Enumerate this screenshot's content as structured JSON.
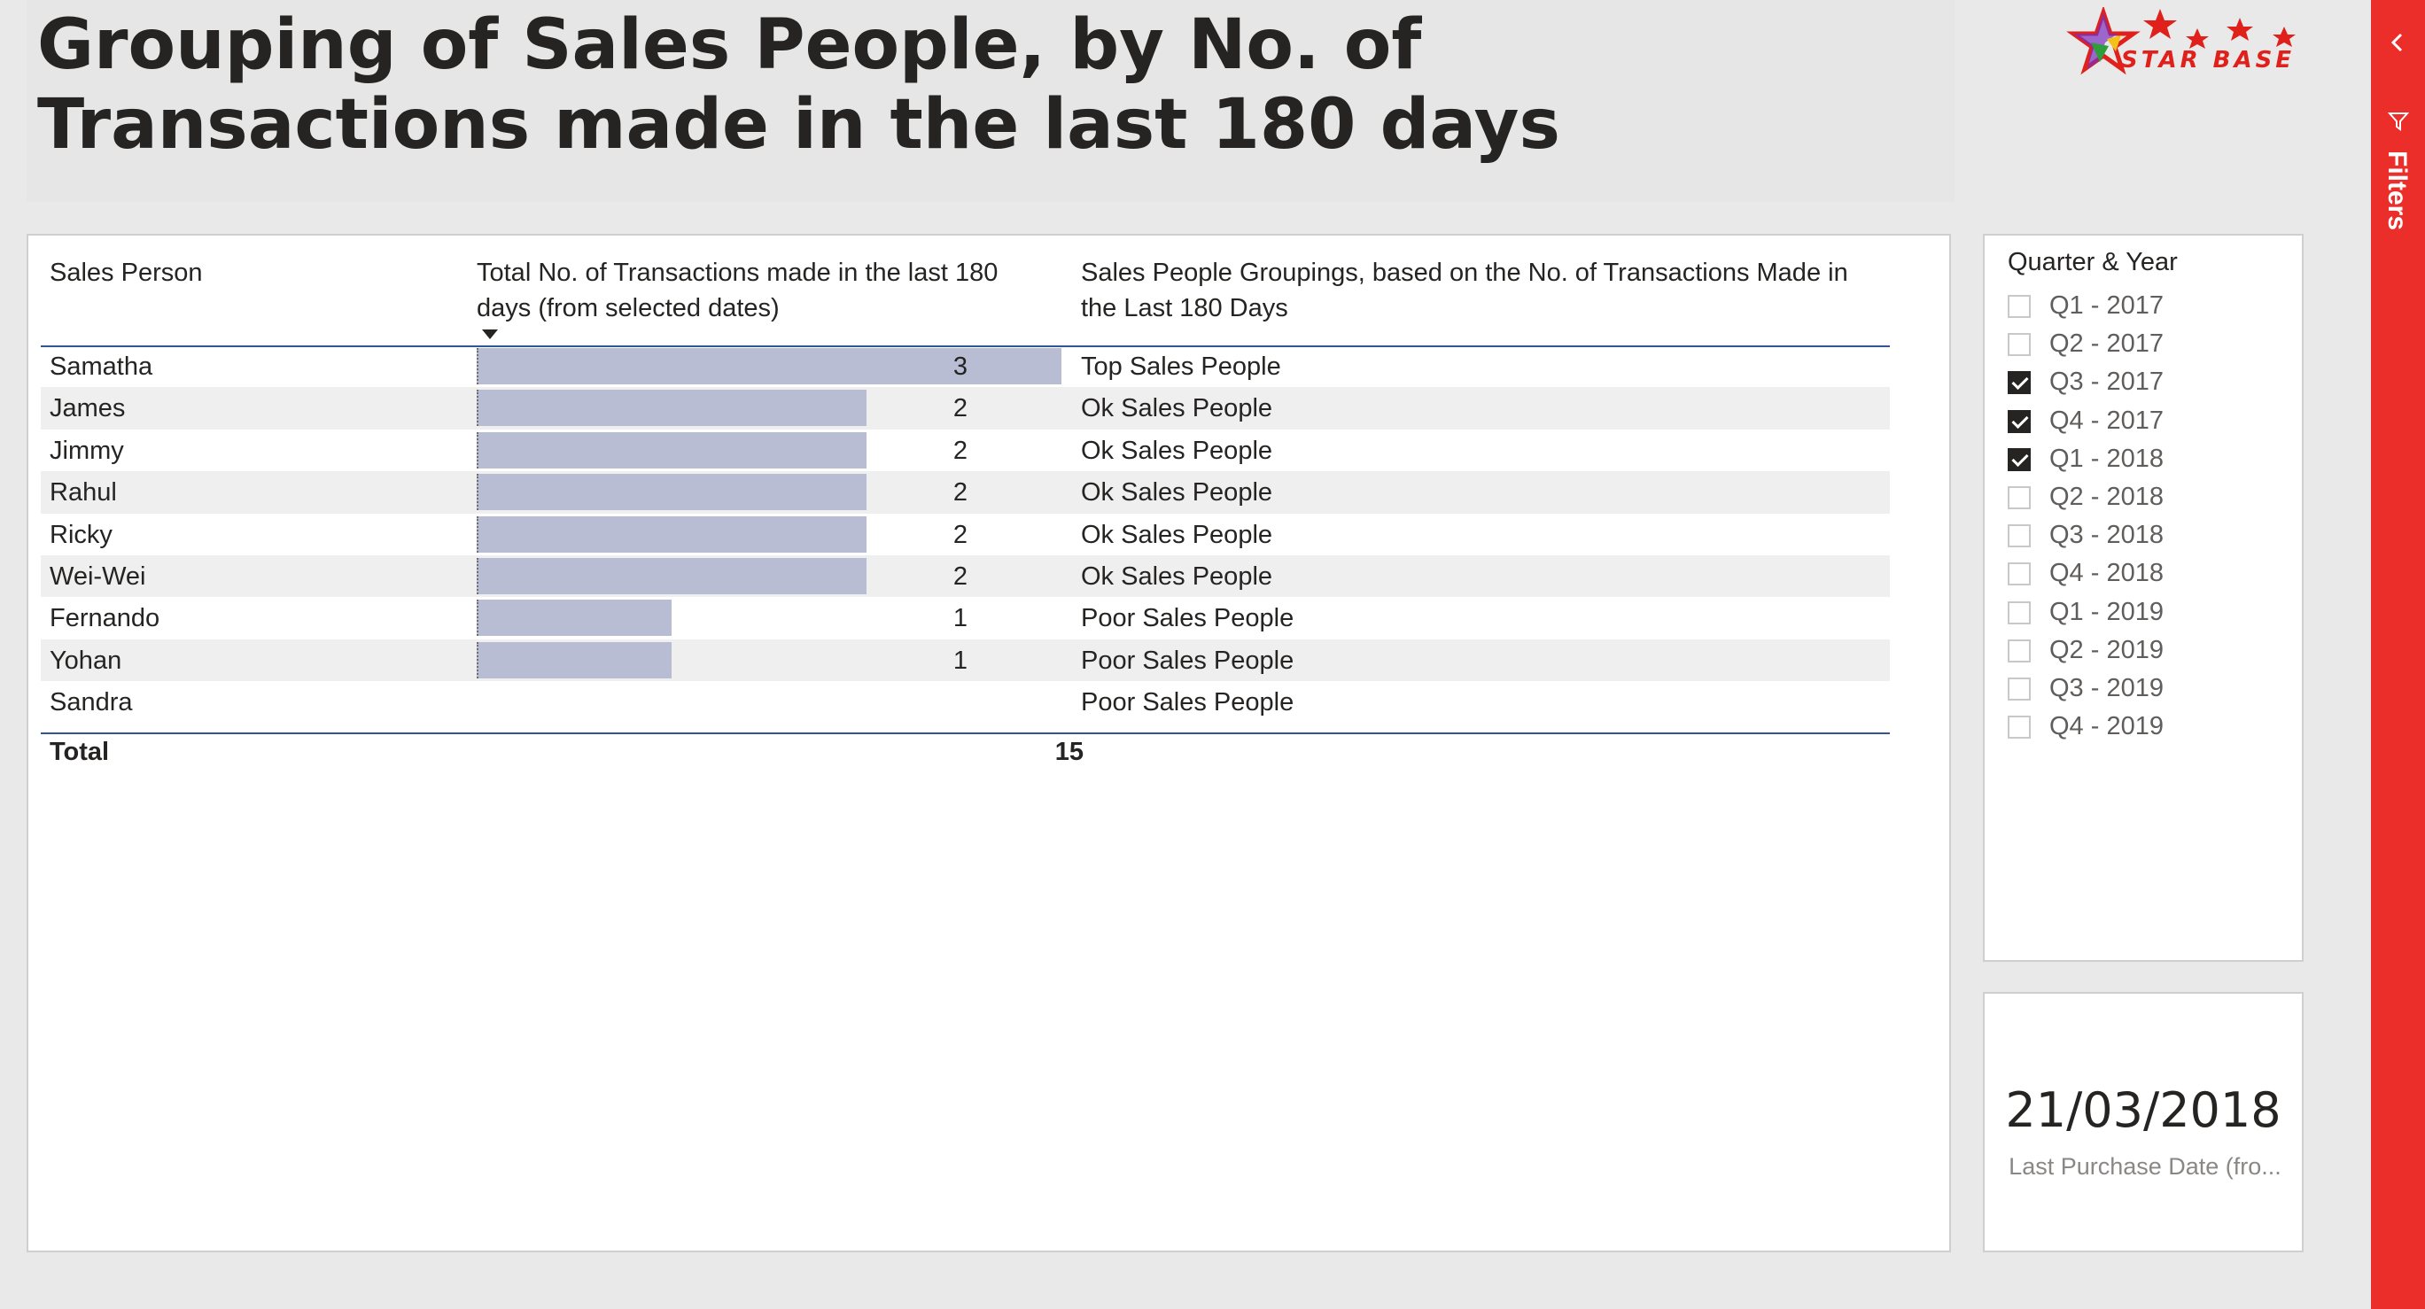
{
  "title": "Grouping of Sales People, by No. of Transactions made in the last 180 days",
  "logo": {
    "text": "STAR BASE",
    "icon": "star-logo-icon"
  },
  "table": {
    "headers": [
      "Sales Person",
      "Total No. of Transactions made in the last 180 days (from selected dates)",
      "Sales People Groupings, based on the No. of Transactions Made in the Last 180 Days"
    ],
    "sort_icon": "sort-descending-icon",
    "rows": [
      {
        "name": "Samatha",
        "value": "3",
        "group": "Top Sales People"
      },
      {
        "name": "James",
        "value": "2",
        "group": "Ok Sales People"
      },
      {
        "name": "Jimmy",
        "value": "2",
        "group": "Ok Sales People"
      },
      {
        "name": "Rahul",
        "value": "2",
        "group": "Ok Sales People"
      },
      {
        "name": "Ricky",
        "value": "2",
        "group": "Ok Sales People"
      },
      {
        "name": "Wei-Wei",
        "value": "2",
        "group": "Ok Sales People"
      },
      {
        "name": "Fernando",
        "value": "1",
        "group": "Poor Sales People"
      },
      {
        "name": "Yohan",
        "value": "1",
        "group": "Poor Sales People"
      },
      {
        "name": "Sandra",
        "value": "",
        "group": "Poor Sales People"
      }
    ],
    "total_label": "Total",
    "total_value": "15",
    "bar_color": "#b8bdd4"
  },
  "slicer": {
    "title": "Quarter & Year",
    "items": [
      {
        "label": "Q1 - 2017",
        "checked": false
      },
      {
        "label": "Q2 - 2017",
        "checked": false
      },
      {
        "label": "Q3 - 2017",
        "checked": true
      },
      {
        "label": "Q4 - 2017",
        "checked": true
      },
      {
        "label": "Q1 - 2018",
        "checked": true
      },
      {
        "label": "Q2 - 2018",
        "checked": false
      },
      {
        "label": "Q3 - 2018",
        "checked": false
      },
      {
        "label": "Q4 - 2018",
        "checked": false
      },
      {
        "label": "Q1 - 2019",
        "checked": false
      },
      {
        "label": "Q2 - 2019",
        "checked": false
      },
      {
        "label": "Q3 - 2019",
        "checked": false
      },
      {
        "label": "Q4 - 2019",
        "checked": false
      }
    ]
  },
  "kpi": {
    "value": "21/03/2018",
    "label": "Last Purchase Date (fro..."
  },
  "filters_pane": {
    "label": "Filters",
    "accent": "#ec2e2a"
  }
}
